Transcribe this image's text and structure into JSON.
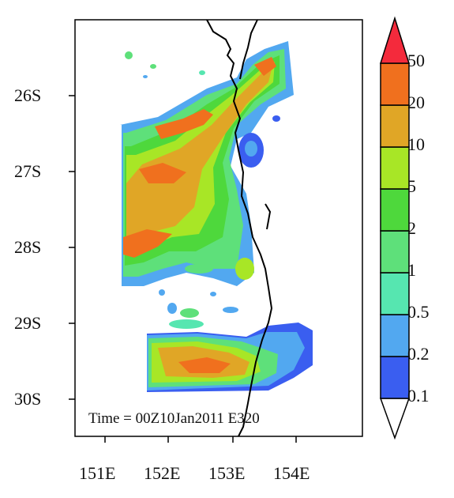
{
  "map": {
    "annotation": "Time = 00Z10Jan2011 E320",
    "lat_labels": [
      "26S",
      "27S",
      "28S",
      "29S",
      "30S"
    ],
    "lon_labels": [
      "151E",
      "152E",
      "153E",
      "154E"
    ],
    "lat_range": [
      -30.5,
      -24.8
    ],
    "lon_range": [
      150.3,
      154.7
    ]
  },
  "colorbar": {
    "levels": [
      "0.1",
      "0.2",
      "0.5",
      "1",
      "2",
      "5",
      "10",
      "20",
      "50"
    ],
    "colors": [
      "#3a5ef0",
      "#52a8f0",
      "#56e6b0",
      "#5ee07a",
      "#4ed83c",
      "#a8e626",
      "#e0a626",
      "#f0701e",
      "#f42a3c"
    ],
    "below_color": "#ffffff",
    "extend": "both"
  }
}
